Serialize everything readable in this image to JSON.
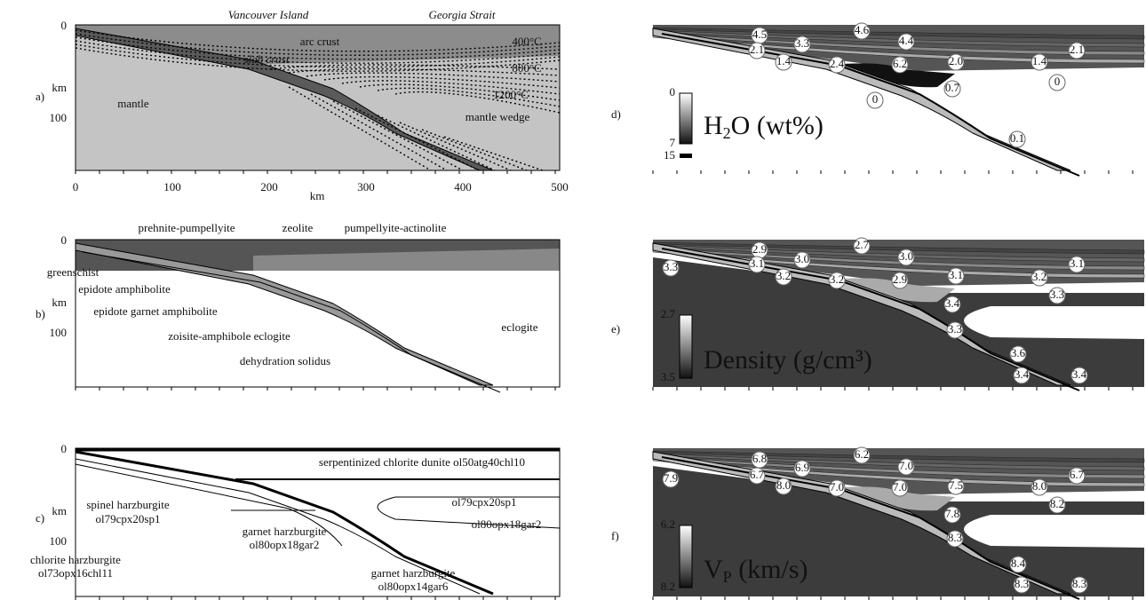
{
  "panels": [
    {
      "label": "a)",
      "y_axis": [
        "0",
        "km",
        "100"
      ],
      "x_axis": {
        "ticks": [
          "0",
          "100",
          "200",
          "300",
          "400",
          "500"
        ],
        "title": "km"
      },
      "top_labels": [
        "Vancouver Island",
        "Georgia Strait"
      ],
      "annotations": [
        "arc crust",
        "400°C",
        "slab crust",
        "800°C",
        "1200°C",
        "mantle",
        "mantle wedge"
      ]
    },
    {
      "label": "b)",
      "y_axis": [
        "0",
        "km",
        "100"
      ],
      "annotations": [
        "prehnite-pumpellyite",
        "zeolite",
        "pumpellyite-actinolite",
        "greenschist",
        "epidote amphibolite",
        "epidote garnet amphibolite",
        "zoisite-amphibole eclogite",
        "eclogite",
        "dehydration solidus"
      ]
    },
    {
      "label": "c)",
      "y_axis": [
        "0",
        "km",
        "100"
      ],
      "annotations": [
        "serpentinized chlorite dunite ol50atg40chl10",
        "spinel harzburgite",
        "ol79cpx20sp1",
        "ol79cpx20sp1",
        "garnet harzburgite",
        "ol80opx18gar2",
        "ol80opx18gar2",
        "chlorite harzburgite",
        "ol73opx16chl11",
        "garnet harzburgite",
        "ol80opx14gar6"
      ]
    },
    {
      "label": "d)",
      "annotations": [
        "4.5",
        "4.6",
        "3.3",
        "4.4",
        "2.1",
        "2.1",
        "1.4",
        "2.4",
        "6.2",
        "2.0",
        "1.4",
        "0.7",
        "0",
        "0",
        "0.1"
      ],
      "legend": {
        "top": "0",
        "bottom": "7",
        "extra": "15",
        "title": [
          "H",
          "2",
          "O (wt%)"
        ]
      }
    },
    {
      "label": "e)",
      "annotations": [
        "2.9",
        "2.7",
        "3.0",
        "3.0",
        "3.1",
        "3.1",
        "3.3",
        "3.2",
        "3.2",
        "2.9",
        "3.1",
        "3.2",
        "3.3",
        "3.4",
        "3.3",
        "3.6",
        "3.4",
        "3.4"
      ],
      "legend": {
        "top": "2.7",
        "bottom": "3.5",
        "title": [
          "Density (g/cm³)"
        ]
      }
    },
    {
      "label": "f)",
      "annotations": [
        "6.8",
        "6.2",
        "6.9",
        "7.0",
        "6.7",
        "6.7",
        "7.9",
        "8.0",
        "7.0",
        "7.0",
        "7.5",
        "8.0",
        "8.2",
        "7.8",
        "8.3",
        "8.4",
        "8.3",
        "8.3"
      ],
      "legend": {
        "top": "6.2",
        "bottom": "8.2",
        "title": [
          "V",
          "P",
          " (km/s)"
        ]
      }
    }
  ]
}
